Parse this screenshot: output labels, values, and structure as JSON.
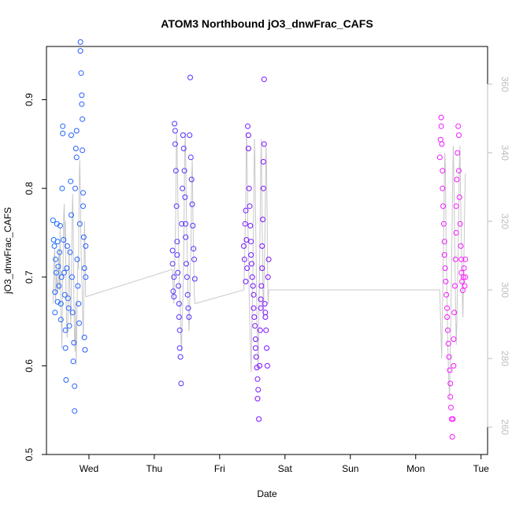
{
  "chart_data": {
    "type": "scatter",
    "title": "ATOM3 Northbound jO3_dnwFrac_CAFS",
    "xlabel": "Date",
    "ylabel": "jO3_dnwFrac_CAFS",
    "x_ticks": [
      "Wed",
      "Thu",
      "Fri",
      "Sat",
      "Sun",
      "Mon",
      "Tue"
    ],
    "y_ticks": [
      "0.5",
      "0.6",
      "0.7",
      "0.8",
      "0.9"
    ],
    "y_tick_values": [
      0.5,
      0.6,
      0.7,
      0.8,
      0.9
    ],
    "right_ticks": [
      "260",
      "280",
      "300",
      "320",
      "340",
      "360"
    ],
    "right_tick_values": [
      260,
      280,
      300,
      320,
      340,
      360
    ],
    "ylim": [
      0.5,
      0.96
    ],
    "right_lim": [
      252,
      371
    ],
    "xlim_days": [
      -0.65,
      6.1
    ],
    "grid": false,
    "colors": {
      "point_start": "#1a6cff",
      "point_mid": "#7a10ff",
      "point_end": "#ff1aff",
      "line": "#c8c8c8",
      "right_axis": "#bdbdbd"
    },
    "series": [
      {
        "segment": 1,
        "x_range": [
          "Tue 17:00",
          "Wed 09:00"
        ],
        "points": [
          [
            -0.55,
            0.764
          ],
          [
            -0.54,
            0.742
          ],
          [
            -0.53,
            0.735
          ],
          [
            -0.52,
            0.683
          ],
          [
            -0.52,
            0.66
          ],
          [
            -0.51,
            0.72
          ],
          [
            -0.5,
            0.705
          ],
          [
            -0.49,
            0.76
          ],
          [
            -0.48,
            0.74
          ],
          [
            -0.48,
            0.672
          ],
          [
            -0.47,
            0.712
          ],
          [
            -0.46,
            0.69
          ],
          [
            -0.45,
            0.728
          ],
          [
            -0.44,
            0.758
          ],
          [
            -0.43,
            0.67
          ],
          [
            -0.43,
            0.652
          ],
          [
            -0.42,
            0.7
          ],
          [
            -0.41,
            0.8
          ],
          [
            -0.4,
            0.87
          ],
          [
            -0.4,
            0.862
          ],
          [
            -0.39,
            0.742
          ],
          [
            -0.38,
            0.705
          ],
          [
            -0.37,
            0.68
          ],
          [
            -0.36,
            0.64
          ],
          [
            -0.36,
            0.62
          ],
          [
            -0.35,
            0.584
          ],
          [
            -0.34,
            0.71
          ],
          [
            -0.33,
            0.735
          ],
          [
            -0.32,
            0.676
          ],
          [
            -0.31,
            0.665
          ],
          [
            -0.3,
            0.645
          ],
          [
            -0.29,
            0.728
          ],
          [
            -0.28,
            0.808
          ],
          [
            -0.27,
            0.86
          ],
          [
            -0.27,
            0.77
          ],
          [
            -0.26,
            0.7
          ],
          [
            -0.25,
            0.66
          ],
          [
            -0.24,
            0.605
          ],
          [
            -0.23,
            0.626
          ],
          [
            -0.22,
            0.577
          ],
          [
            -0.22,
            0.549
          ],
          [
            -0.21,
            0.8
          ],
          [
            -0.2,
            0.845
          ],
          [
            -0.19,
            0.865
          ],
          [
            -0.19,
            0.835
          ],
          [
            -0.18,
            0.72
          ],
          [
            -0.17,
            0.69
          ],
          [
            -0.16,
            0.67
          ],
          [
            -0.15,
            0.648
          ],
          [
            -0.14,
            0.76
          ],
          [
            -0.13,
            0.955
          ],
          [
            -0.13,
            0.965
          ],
          [
            -0.12,
            0.93
          ],
          [
            -0.11,
            0.905
          ],
          [
            -0.11,
            0.895
          ],
          [
            -0.1,
            0.878
          ],
          [
            -0.1,
            0.843
          ],
          [
            -0.09,
            0.795
          ],
          [
            -0.09,
            0.78
          ],
          [
            -0.08,
            0.745
          ],
          [
            -0.07,
            0.71
          ],
          [
            -0.07,
            0.632
          ],
          [
            -0.06,
            0.618
          ],
          [
            -0.05,
            0.7
          ],
          [
            -0.05,
            0.735
          ]
        ],
        "path_values": [
          296,
          303,
          310,
          312,
          296,
          300,
          306,
          302,
          299,
          303,
          312,
          300,
          318,
          296,
          290,
          283,
          300,
          308,
          322,
          325,
          312,
          320,
          298,
          290,
          286,
          292,
          302,
          312,
          304,
          294,
          290,
          302,
          318,
          328,
          320,
          300,
          288,
          282,
          296,
          278,
          288,
          300,
          310,
          306,
          330,
          338,
          330,
          315,
          306,
          300,
          292,
          286,
          300,
          320,
          312,
          298
        ]
      },
      {
        "segment": 2,
        "x_range": [
          "Thu 08:00",
          "Thu 19:00"
        ],
        "points": [
          [
            1.28,
            0.73
          ],
          [
            1.28,
            0.715
          ],
          [
            1.29,
            0.684
          ],
          [
            1.3,
            0.7
          ],
          [
            1.3,
            0.678
          ],
          [
            1.31,
            0.873
          ],
          [
            1.32,
            0.865
          ],
          [
            1.32,
            0.85
          ],
          [
            1.33,
            0.82
          ],
          [
            1.34,
            0.78
          ],
          [
            1.35,
            0.74
          ],
          [
            1.35,
            0.725
          ],
          [
            1.36,
            0.705
          ],
          [
            1.37,
            0.69
          ],
          [
            1.38,
            0.67
          ],
          [
            1.38,
            0.655
          ],
          [
            1.39,
            0.64
          ],
          [
            1.39,
            0.62
          ],
          [
            1.4,
            0.61
          ],
          [
            1.41,
            0.58
          ],
          [
            1.42,
            0.76
          ],
          [
            1.43,
            0.8
          ],
          [
            1.44,
            0.86
          ],
          [
            1.45,
            0.845
          ],
          [
            1.46,
            0.82
          ],
          [
            1.47,
            0.79
          ],
          [
            1.48,
            0.76
          ],
          [
            1.48,
            0.745
          ],
          [
            1.49,
            0.715
          ],
          [
            1.5,
            0.7
          ],
          [
            1.51,
            0.68
          ],
          [
            1.52,
            0.665
          ],
          [
            1.53,
            0.655
          ],
          [
            1.54,
            0.86
          ],
          [
            1.55,
            0.925
          ],
          [
            1.56,
            0.835
          ],
          [
            1.57,
            0.81
          ],
          [
            1.58,
            0.782
          ],
          [
            1.59,
            0.758
          ],
          [
            1.6,
            0.732
          ],
          [
            1.61,
            0.72
          ],
          [
            1.62,
            0.698
          ]
        ],
        "path_values": [
          306,
          300,
          296,
          304,
          312,
          322,
          346,
          342,
          330,
          316,
          306,
          300,
          294,
          286,
          282,
          290,
          296,
          304,
          318,
          340,
          346,
          335,
          320,
          310,
          300,
          292,
          288,
          296,
          306,
          314,
          332,
          338,
          322,
          310,
          300,
          296
        ]
      },
      {
        "segment": 3,
        "x_range": [
          "Fri 12:00",
          "Sat 00:00"
        ],
        "points": [
          [
            2.37,
            0.735
          ],
          [
            2.38,
            0.72
          ],
          [
            2.39,
            0.76
          ],
          [
            2.4,
            0.775
          ],
          [
            2.4,
            0.695
          ],
          [
            2.41,
            0.742
          ],
          [
            2.42,
            0.71
          ],
          [
            2.43,
            0.87
          ],
          [
            2.44,
            0.86
          ],
          [
            2.44,
            0.845
          ],
          [
            2.45,
            0.8
          ],
          [
            2.46,
            0.78
          ],
          [
            2.47,
            0.758
          ],
          [
            2.48,
            0.74
          ],
          [
            2.48,
            0.725
          ],
          [
            2.49,
            0.715
          ],
          [
            2.5,
            0.7
          ],
          [
            2.51,
            0.69
          ],
          [
            2.52,
            0.68
          ],
          [
            2.52,
            0.665
          ],
          [
            2.53,
            0.655
          ],
          [
            2.54,
            0.645
          ],
          [
            2.55,
            0.63
          ],
          [
            2.55,
            0.62
          ],
          [
            2.56,
            0.61
          ],
          [
            2.57,
            0.598
          ],
          [
            2.58,
            0.585
          ],
          [
            2.58,
            0.563
          ],
          [
            2.59,
            0.573
          ],
          [
            2.6,
            0.54
          ],
          [
            2.61,
            0.6
          ],
          [
            2.62,
            0.64
          ],
          [
            2.63,
            0.665
          ],
          [
            2.63,
            0.675
          ],
          [
            2.64,
            0.69
          ],
          [
            2.65,
            0.71
          ],
          [
            2.65,
            0.735
          ],
          [
            2.66,
            0.765
          ],
          [
            2.67,
            0.8
          ],
          [
            2.67,
            0.83
          ],
          [
            2.68,
            0.85
          ],
          [
            2.68,
            0.923
          ],
          [
            2.69,
            0.67
          ],
          [
            2.7,
            0.66
          ],
          [
            2.7,
            0.655
          ],
          [
            2.71,
            0.64
          ],
          [
            2.72,
            0.62
          ],
          [
            2.73,
            0.6
          ],
          [
            2.74,
            0.7
          ],
          [
            2.75,
            0.72
          ]
        ],
        "path_values": [
          300,
          306,
          312,
          322,
          330,
          346,
          340,
          326,
          316,
          308,
          300,
          292,
          286,
          280,
          276,
          288,
          296,
          304,
          316,
          330,
          344,
          338,
          324,
          312,
          300,
          290,
          284,
          278,
          286,
          298,
          310,
          322,
          336,
          344,
          330,
          316,
          302,
          292,
          300,
          308,
          318,
          328,
          342,
          336,
          322,
          304,
          296,
          300
        ]
      },
      {
        "segment": 4,
        "x_range": [
          "Mon 13:00",
          "Tue 03:00"
        ],
        "points": [
          [
            5.37,
            0.835
          ],
          [
            5.38,
            0.855
          ],
          [
            5.39,
            0.88
          ],
          [
            5.39,
            0.87
          ],
          [
            5.4,
            0.85
          ],
          [
            5.41,
            0.82
          ],
          [
            5.41,
            0.8
          ],
          [
            5.42,
            0.78
          ],
          [
            5.43,
            0.76
          ],
          [
            5.44,
            0.74
          ],
          [
            5.44,
            0.725
          ],
          [
            5.45,
            0.71
          ],
          [
            5.46,
            0.695
          ],
          [
            5.47,
            0.68
          ],
          [
            5.48,
            0.665
          ],
          [
            5.48,
            0.655
          ],
          [
            5.49,
            0.64
          ],
          [
            5.5,
            0.625
          ],
          [
            5.51,
            0.61
          ],
          [
            5.52,
            0.595
          ],
          [
            5.53,
            0.58
          ],
          [
            5.53,
            0.565
          ],
          [
            5.54,
            0.553
          ],
          [
            5.55,
            0.54
          ],
          [
            5.56,
            0.52
          ],
          [
            5.57,
            0.54
          ],
          [
            5.58,
            0.6
          ],
          [
            5.58,
            0.63
          ],
          [
            5.59,
            0.66
          ],
          [
            5.6,
            0.69
          ],
          [
            5.61,
            0.72
          ],
          [
            5.62,
            0.75
          ],
          [
            5.62,
            0.78
          ],
          [
            5.63,
            0.81
          ],
          [
            5.64,
            0.84
          ],
          [
            5.65,
            0.87
          ],
          [
            5.66,
            0.86
          ],
          [
            5.66,
            0.82
          ],
          [
            5.67,
            0.79
          ],
          [
            5.68,
            0.76
          ],
          [
            5.69,
            0.735
          ],
          [
            5.7,
            0.72
          ],
          [
            5.7,
            0.705
          ],
          [
            5.71,
            0.695
          ],
          [
            5.72,
            0.685
          ],
          [
            5.73,
            0.7
          ],
          [
            5.74,
            0.71
          ],
          [
            5.75,
            0.69
          ],
          [
            5.76,
            0.72
          ],
          [
            5.76,
            0.7
          ]
        ],
        "path_values": [
          300,
          292,
          286,
          280,
          290,
          302,
          314,
          326,
          340,
          336,
          320,
          306,
          294,
          284,
          278,
          272,
          268,
          280,
          292,
          304,
          316,
          330,
          342,
          334,
          320,
          306,
          294,
          284,
          290,
          302,
          310,
          322,
          336,
          342,
          330,
          318,
          306,
          298,
          292,
          304,
          314,
          326,
          334
        ]
      }
    ]
  }
}
